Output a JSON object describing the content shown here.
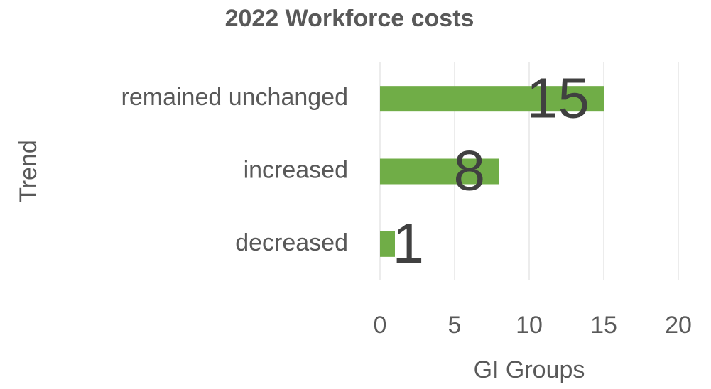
{
  "chart_data": {
    "type": "bar",
    "orientation": "horizontal",
    "title": "2022 Workforce costs",
    "categories": [
      "remained unchanged",
      "increased",
      "decreased"
    ],
    "values": [
      15,
      8,
      1
    ],
    "color": "#70ad47",
    "xlabel": "GI Groups",
    "ylabel": "Trend",
    "xlim": [
      0,
      20
    ],
    "xticks": [
      0,
      5,
      10,
      15,
      20
    ],
    "grid": true
  }
}
